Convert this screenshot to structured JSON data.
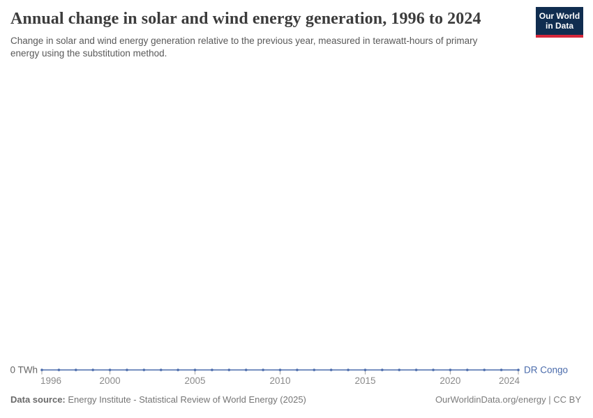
{
  "header": {
    "title": "Annual change in solar and wind energy generation, 1996 to 2024",
    "subtitle": "Change in solar and wind energy generation relative to the previous year, measured in terawatt-hours of primary energy using the substitution method.",
    "logo": {
      "line1": "Our World",
      "line2": "in Data"
    }
  },
  "chart_data": {
    "type": "line",
    "title": "Annual change in solar and wind energy generation, 1996 to 2024",
    "x": [
      1996,
      1997,
      1998,
      1999,
      2000,
      2001,
      2002,
      2003,
      2004,
      2005,
      2006,
      2007,
      2008,
      2009,
      2010,
      2011,
      2012,
      2013,
      2014,
      2015,
      2016,
      2017,
      2018,
      2019,
      2020,
      2021,
      2022,
      2023,
      2024
    ],
    "series": [
      {
        "name": "DR Congo",
        "color": "#4a6bab",
        "values": [
          0,
          0,
          0,
          0,
          0,
          0,
          0,
          0,
          0,
          0,
          0,
          0,
          0,
          0,
          0,
          0,
          0,
          0,
          0,
          0,
          0,
          0,
          0,
          0,
          0,
          0,
          0,
          0,
          0
        ]
      }
    ],
    "x_ticks": [
      1996,
      2000,
      2005,
      2010,
      2015,
      2020,
      2024
    ],
    "y_tick_label": "0 TWh",
    "y_unit": "TWh",
    "ylim": [
      0,
      0
    ],
    "grid": false,
    "legend_position": "right-of-line-end",
    "point_markers": true
  },
  "footer": {
    "datasource_label": "Data source:",
    "datasource_value": " Energy Institute - Statistical Review of World Energy (2025)",
    "credit": "OurWorldinData.org/energy | CC BY"
  },
  "colors": {
    "line": "#4a6bab",
    "axis_tick": "#a5a5a5",
    "axis_text": "#8a8a8a",
    "y_label_text": "#666666",
    "logo_bg": "#102d50",
    "logo_stripe": "#d6273b"
  }
}
